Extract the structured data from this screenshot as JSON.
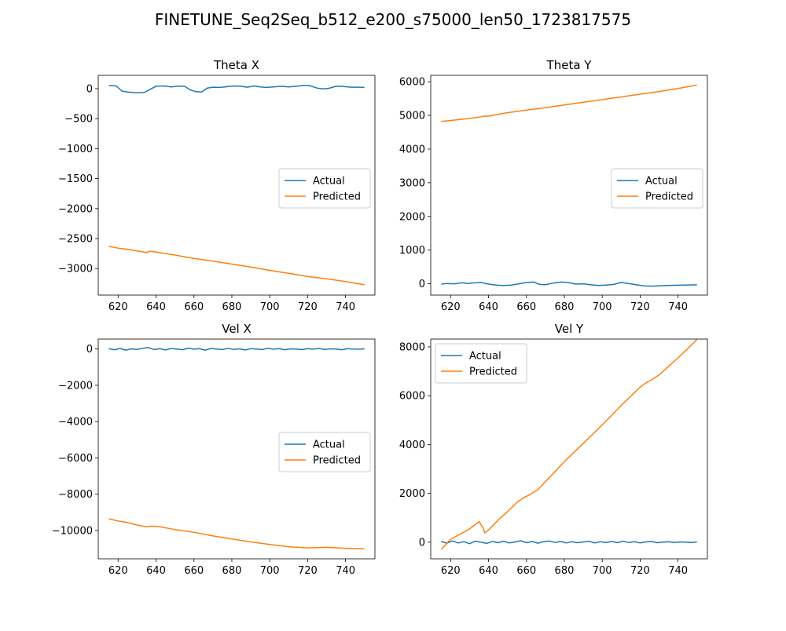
{
  "figure": {
    "suptitle": "FINETUNE_Seq2Seq_b512_e200_s75000_len50_1723817575"
  },
  "colors": {
    "actual": "#1f77b4",
    "predicted": "#ff7f0e",
    "axes": "#000000",
    "legend_border": "#cccccc"
  },
  "chart_data": [
    {
      "type": "line",
      "title": "Theta X",
      "xlabel": "",
      "ylabel": "",
      "xlim": [
        609.5,
        755.5
      ],
      "ylim": [
        -3442,
        222
      ],
      "xticks": [
        620,
        640,
        660,
        680,
        700,
        720,
        740
      ],
      "xtick_labels": [
        "620",
        "640",
        "660",
        "680",
        "700",
        "720",
        "740"
      ],
      "yticks": [
        0,
        -500,
        -1000,
        -1500,
        -2000,
        -2500,
        -3000
      ],
      "ytick_labels": [
        "0",
        "−500",
        "−1000",
        "−1500",
        "−2000",
        "−2500",
        "−3000"
      ],
      "grid": false,
      "legend_position": "center-right",
      "series": [
        {
          "name": "Actual",
          "color_key": "actual",
          "x": [
            615,
            619,
            622,
            625,
            628,
            631,
            634,
            637,
            640,
            644,
            648,
            651,
            655,
            658,
            661,
            664,
            667,
            670,
            674,
            678,
            681,
            685,
            688,
            692,
            695,
            698,
            702,
            706,
            710,
            714,
            718,
            721,
            725,
            728,
            731,
            735,
            739,
            743,
            747,
            750
          ],
          "y": [
            50,
            45,
            -40,
            -55,
            -65,
            -70,
            -60,
            -10,
            40,
            45,
            30,
            40,
            40,
            -20,
            -50,
            -55,
            10,
            25,
            20,
            35,
            45,
            40,
            25,
            45,
            30,
            20,
            30,
            40,
            30,
            40,
            55,
            50,
            10,
            -5,
            5,
            40,
            35,
            25,
            25,
            20
          ]
        },
        {
          "name": "Predicted",
          "color_key": "predicted",
          "x": [
            615,
            620,
            625,
            630,
            635,
            637,
            640,
            645,
            650,
            660,
            670,
            680,
            690,
            700,
            710,
            720,
            730,
            740,
            750
          ],
          "y": [
            -2630,
            -2660,
            -2680,
            -2705,
            -2730,
            -2710,
            -2725,
            -2750,
            -2775,
            -2830,
            -2875,
            -2925,
            -2975,
            -3030,
            -3080,
            -3130,
            -3170,
            -3215,
            -3270
          ]
        }
      ]
    },
    {
      "type": "line",
      "title": "Theta Y",
      "xlabel": "",
      "ylabel": "",
      "xlim": [
        609.5,
        755.5
      ],
      "ylim": [
        -336,
        6190
      ],
      "xticks": [
        620,
        640,
        660,
        680,
        700,
        720,
        740
      ],
      "xtick_labels": [
        "620",
        "640",
        "660",
        "680",
        "700",
        "720",
        "740"
      ],
      "yticks": [
        0,
        1000,
        2000,
        3000,
        4000,
        5000,
        6000
      ],
      "ytick_labels": [
        "0",
        "1000",
        "2000",
        "3000",
        "4000",
        "5000",
        "6000"
      ],
      "grid": false,
      "legend_position": "center-right",
      "series": [
        {
          "name": "Actual",
          "color_key": "actual",
          "x": [
            615,
            618,
            622,
            626,
            629,
            632,
            636,
            640,
            644,
            648,
            652,
            656,
            660,
            664,
            667,
            670,
            674,
            678,
            682,
            686,
            690,
            694,
            698,
            702,
            706,
            710,
            714,
            718,
            722,
            726,
            730,
            734,
            738,
            742,
            746,
            750
          ],
          "y": [
            -10,
            10,
            0,
            30,
            10,
            25,
            40,
            -10,
            -40,
            -50,
            -40,
            0,
            40,
            50,
            -20,
            -30,
            20,
            50,
            40,
            -10,
            0,
            -30,
            -50,
            -40,
            -20,
            40,
            10,
            -30,
            -60,
            -70,
            -60,
            -50,
            -45,
            -40,
            -35,
            -30
          ]
        },
        {
          "name": "Predicted",
          "color_key": "predicted",
          "x": [
            615,
            620,
            625,
            630,
            635,
            637,
            640,
            645,
            650,
            660,
            670,
            680,
            690,
            700,
            710,
            720,
            730,
            740,
            750
          ],
          "y": [
            4820,
            4850,
            4880,
            4910,
            4950,
            4970,
            4980,
            5030,
            5080,
            5160,
            5230,
            5310,
            5390,
            5470,
            5550,
            5630,
            5710,
            5800,
            5900
          ]
        }
      ]
    },
    {
      "type": "line",
      "title": "Vel X",
      "xlabel": "",
      "ylabel": "",
      "xlim": [
        609.5,
        755.5
      ],
      "ylim": [
        -11560,
        550
      ],
      "xticks": [
        620,
        640,
        660,
        680,
        700,
        720,
        740
      ],
      "xtick_labels": [
        "620",
        "640",
        "660",
        "680",
        "700",
        "720",
        "740"
      ],
      "yticks": [
        0,
        -2000,
        -4000,
        -6000,
        -8000,
        -10000
      ],
      "ytick_labels": [
        "0",
        "−2000",
        "−4000",
        "−6000",
        "−8000",
        "−10000"
      ],
      "grid": false,
      "legend_position": "center-right",
      "series": [
        {
          "name": "Actual",
          "color_key": "actual",
          "x": [
            615,
            618,
            621,
            624,
            627,
            630,
            633,
            636,
            639,
            642,
            645,
            648,
            651,
            654,
            657,
            660,
            663,
            666,
            669,
            672,
            675,
            678,
            681,
            684,
            687,
            690,
            693,
            696,
            699,
            702,
            705,
            708,
            711,
            714,
            717,
            720,
            723,
            726,
            729,
            732,
            735,
            738,
            741,
            744,
            747,
            750
          ],
          "y": [
            20,
            -40,
            30,
            -60,
            10,
            -20,
            40,
            80,
            -30,
            20,
            -50,
            30,
            0,
            -40,
            50,
            -10,
            20,
            -60,
            30,
            0,
            -30,
            40,
            -20,
            10,
            -50,
            20,
            0,
            -30,
            40,
            -10,
            20,
            -40,
            10,
            0,
            -30,
            20,
            -10,
            30,
            -20,
            10,
            0,
            -40,
            20,
            0,
            -10,
            10
          ]
        },
        {
          "name": "Predicted",
          "color_key": "predicted",
          "x": [
            615,
            620,
            625,
            630,
            635,
            638,
            642,
            650,
            660,
            670,
            680,
            690,
            700,
            710,
            720,
            730,
            740,
            750
          ],
          "y": [
            -9350,
            -9480,
            -9560,
            -9700,
            -9800,
            -9760,
            -9790,
            -9950,
            -10100,
            -10300,
            -10470,
            -10630,
            -10770,
            -10900,
            -10960,
            -10930,
            -10980,
            -11010
          ]
        }
      ]
    },
    {
      "type": "line",
      "title": "Vel Y",
      "xlabel": "",
      "ylabel": "",
      "xlim": [
        609.5,
        755.5
      ],
      "ylim": [
        -680,
        8320
      ],
      "xticks": [
        620,
        640,
        660,
        680,
        700,
        720,
        740
      ],
      "xtick_labels": [
        "620",
        "640",
        "660",
        "680",
        "700",
        "720",
        "740"
      ],
      "yticks": [
        0,
        2000,
        4000,
        6000,
        8000
      ],
      "ytick_labels": [
        "0",
        "2000",
        "4000",
        "6000",
        "8000"
      ],
      "grid": false,
      "legend_position": "upper-left",
      "series": [
        {
          "name": "Actual",
          "color_key": "actual",
          "x": [
            615,
            618,
            621,
            624,
            627,
            630,
            633,
            636,
            639,
            642,
            645,
            648,
            651,
            654,
            657,
            660,
            663,
            666,
            669,
            672,
            675,
            678,
            681,
            684,
            687,
            690,
            693,
            696,
            699,
            702,
            705,
            708,
            711,
            714,
            717,
            720,
            723,
            726,
            729,
            732,
            735,
            738,
            741,
            744,
            747,
            750
          ],
          "y": [
            30,
            -40,
            50,
            -30,
            20,
            -60,
            40,
            0,
            -50,
            30,
            -20,
            40,
            -30,
            10,
            60,
            -20,
            30,
            -40,
            20,
            50,
            -10,
            30,
            -30,
            20,
            -20,
            10,
            40,
            -30,
            20,
            -10,
            30,
            -20,
            40,
            -10,
            20,
            -30,
            10,
            30,
            -20,
            0,
            20,
            -10,
            10,
            0,
            -10,
            10
          ]
        },
        {
          "name": "Predicted",
          "color_key": "predicted",
          "x": [
            615,
            620,
            625,
            630,
            635,
            637,
            638,
            640,
            645,
            650,
            655,
            658,
            662,
            666,
            670,
            675,
            680,
            690,
            700,
            710,
            720,
            723,
            726,
            730,
            735,
            740,
            745,
            750
          ],
          "y": [
            -300,
            120,
            330,
            540,
            840,
            600,
            380,
            500,
            900,
            1250,
            1630,
            1800,
            1960,
            2150,
            2480,
            2880,
            3300,
            4050,
            4800,
            5600,
            6350,
            6520,
            6650,
            6850,
            7200,
            7550,
            7920,
            8300
          ]
        }
      ]
    }
  ]
}
